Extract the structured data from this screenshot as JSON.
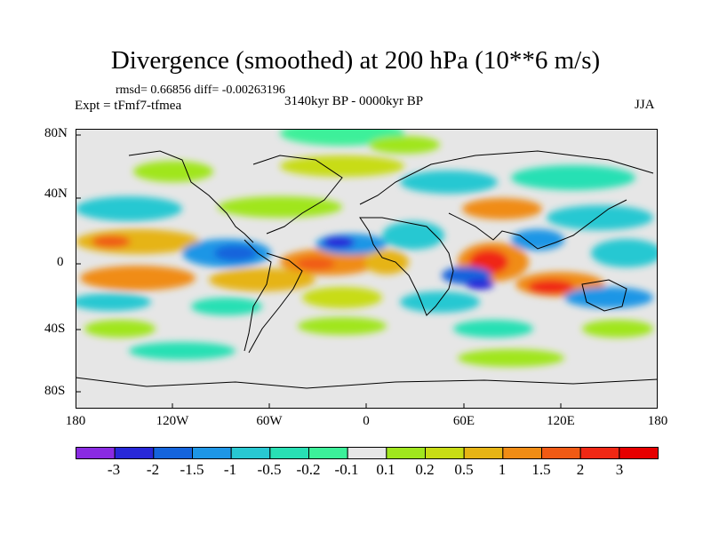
{
  "title": "Divergence (smoothed) at 200 hPa (10**6 m/s)",
  "stats": "rmsd= 0.66856 diff= -0.00263196",
  "experiment": "Expt = tFmf7-tfmea",
  "period": "3140kyr BP - 0000kyr BP",
  "season": "JJA",
  "lat_labels": [
    "80N",
    "40N",
    "0",
    "40S",
    "80S"
  ],
  "lon_labels": [
    "180",
    "120W",
    "60W",
    "0",
    "60E",
    "120E",
    "180"
  ],
  "colorbar": {
    "labels": [
      "-3",
      "-2",
      "-1.5",
      "-1",
      "-0.5",
      "-0.2",
      "-0.1",
      "0.1",
      "0.2",
      "0.5",
      "1",
      "1.5",
      "2",
      "3"
    ],
    "colors": [
      "#8a2be2",
      "#2828d8",
      "#1464dc",
      "#1e96e6",
      "#28c8d2",
      "#28e0b4",
      "#3cf09a",
      "#e6e6e6",
      "#a0e61e",
      "#c8dc14",
      "#e6b414",
      "#f08c14",
      "#f05a14",
      "#f02814",
      "#e60000"
    ]
  },
  "colors": {
    "background": "#e6e6e6",
    "coastline": "#000000"
  }
}
